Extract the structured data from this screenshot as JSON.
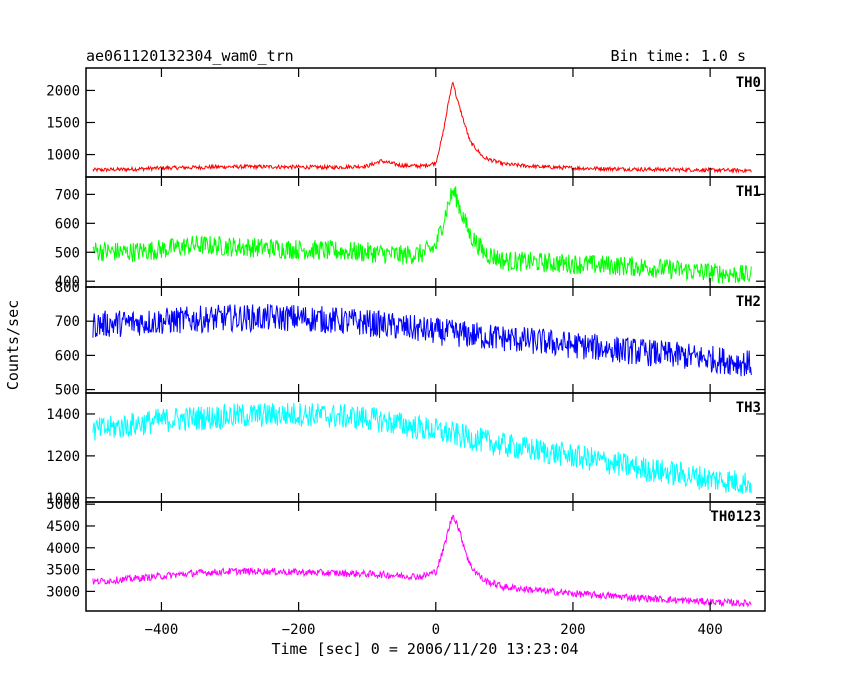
{
  "chart_data": {
    "type": "line",
    "title": "ae061120132304_wam0_trn",
    "subtitle": "Bin time: 1.0 s",
    "xlabel": "Time [sec] 0 = 2006/11/20 13:23:04",
    "ylabel": "Counts/sec",
    "xlim": [
      -510,
      480
    ],
    "x_ticks": [
      -400,
      -200,
      0,
      200,
      400
    ],
    "x_tick_labels": [
      "−400",
      "−200",
      "0",
      "200",
      "400"
    ],
    "panels": [
      {
        "name": "TH0",
        "color": "#ff0000",
        "ylim": [
          650,
          2350
        ],
        "y_ticks": [
          1000,
          1500,
          2000
        ],
        "y_tick_labels": [
          "1000",
          "1500",
          "2000"
        ],
        "x": [
          -500,
          -450,
          -400,
          -350,
          -300,
          -250,
          -200,
          -150,
          -100,
          -80,
          -50,
          -20,
          0,
          10,
          20,
          25,
          30,
          40,
          50,
          70,
          100,
          150,
          200,
          250,
          300,
          350,
          400,
          460
        ],
        "values": [
          760,
          770,
          790,
          800,
          810,
          810,
          805,
          800,
          820,
          900,
          830,
          820,
          870,
          1300,
          1900,
          2150,
          1900,
          1550,
          1200,
          950,
          850,
          810,
          790,
          780,
          770,
          765,
          760,
          750
        ],
        "noise": 30
      },
      {
        "name": "TH1",
        "color": "#00ff00",
        "ylim": [
          380,
          760
        ],
        "y_ticks": [
          400,
          500,
          600,
          700
        ],
        "y_tick_labels": [
          "400",
          "500",
          "600",
          "700"
        ],
        "x": [
          -500,
          -450,
          -400,
          -350,
          -300,
          -250,
          -200,
          -150,
          -100,
          -50,
          -20,
          0,
          10,
          20,
          25,
          30,
          40,
          50,
          70,
          100,
          150,
          200,
          250,
          300,
          350,
          400,
          460
        ],
        "values": [
          505,
          500,
          510,
          525,
          520,
          515,
          510,
          505,
          500,
          490,
          495,
          520,
          600,
          680,
          710,
          690,
          620,
          560,
          500,
          470,
          465,
          460,
          455,
          450,
          440,
          430,
          420
        ],
        "noise": 35
      },
      {
        "name": "TH2",
        "color": "#0000ff",
        "ylim": [
          490,
          800
        ],
        "y_ticks": [
          500,
          600,
          700,
          800
        ],
        "y_tick_labels": [
          "500",
          "600",
          "700",
          "800"
        ],
        "x": [
          -500,
          -400,
          -300,
          -200,
          -100,
          0,
          100,
          200,
          300,
          400,
          460
        ],
        "values": [
          690,
          700,
          710,
          710,
          695,
          670,
          650,
          630,
          610,
          590,
          575
        ],
        "noise": 40
      },
      {
        "name": "TH3",
        "color": "#00ffff",
        "ylim": [
          980,
          1500
        ],
        "y_ticks": [
          1000,
          1200,
          1400
        ],
        "y_tick_labels": [
          "1000",
          "1200",
          "1400"
        ],
        "x": [
          -500,
          -400,
          -300,
          -200,
          -100,
          0,
          100,
          200,
          300,
          400,
          460
        ],
        "values": [
          1320,
          1370,
          1390,
          1400,
          1380,
          1320,
          1250,
          1200,
          1140,
          1090,
          1070
        ],
        "noise": 60
      },
      {
        "name": "TH0123",
        "color": "#ff00ff",
        "ylim": [
          2550,
          5050
        ],
        "y_ticks": [
          3000,
          3500,
          4000,
          4500,
          5000
        ],
        "y_tick_labels": [
          "3000",
          "3500",
          "4000",
          "4500",
          "5000"
        ],
        "x": [
          -500,
          -450,
          -400,
          -350,
          -300,
          -250,
          -200,
          -150,
          -100,
          -50,
          -20,
          0,
          10,
          20,
          25,
          30,
          40,
          50,
          70,
          100,
          150,
          200,
          250,
          300,
          350,
          400,
          460
        ],
        "values": [
          3220,
          3280,
          3350,
          3420,
          3460,
          3460,
          3440,
          3420,
          3400,
          3360,
          3340,
          3450,
          3900,
          4500,
          4750,
          4600,
          4100,
          3600,
          3250,
          3100,
          3020,
          2950,
          2900,
          2850,
          2800,
          2760,
          2720
        ],
        "noise": 80
      }
    ]
  }
}
